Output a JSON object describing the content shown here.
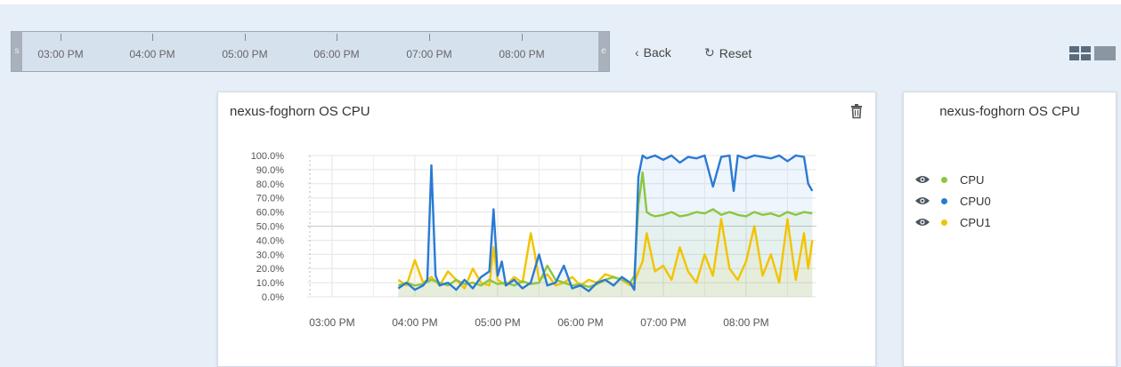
{
  "timeline": {
    "handle_left": "s",
    "handle_right": "e",
    "labels": [
      "03:00 PM",
      "04:00 PM",
      "05:00 PM",
      "06:00 PM",
      "07:00 PM",
      "08:00 PM"
    ]
  },
  "nav": {
    "back_label": "Back",
    "reset_label": "Reset"
  },
  "chart_panel": {
    "title": "nexus-foghorn OS CPU"
  },
  "legend_panel": {
    "title": "nexus-foghorn OS CPU",
    "items": [
      {
        "label": "CPU",
        "color": "#8cc63f"
      },
      {
        "label": "CPU0",
        "color": "#2a7ad3"
      },
      {
        "label": "CPU1",
        "color": "#f2c300"
      }
    ]
  },
  "chart_data": {
    "type": "line",
    "title": "nexus-foghorn OS CPU",
    "xlabel": "",
    "ylabel": "",
    "x_unit": "hours (PM, 24h clock)",
    "xlim": [
      14.7,
      20.85
    ],
    "ylim": [
      0,
      100
    ],
    "yticks": [
      "0.0%",
      "10.0%",
      "20.0%",
      "30.0%",
      "40.0%",
      "50.0%",
      "60.0%",
      "70.0%",
      "80.0%",
      "90.0%",
      "100.0%"
    ],
    "xticks": [
      {
        "x": 15,
        "label": "03:00 PM"
      },
      {
        "x": 16,
        "label": "04:00 PM"
      },
      {
        "x": 17,
        "label": "05:00 PM"
      },
      {
        "x": 18,
        "label": "06:00 PM"
      },
      {
        "x": 19,
        "label": "07:00 PM"
      },
      {
        "x": 20,
        "label": "08:00 PM"
      }
    ],
    "grid": true,
    "series": [
      {
        "name": "CPU",
        "color": "#8cc63f",
        "x": [
          15.8,
          15.9,
          16.0,
          16.1,
          16.2,
          16.3,
          16.4,
          16.5,
          16.6,
          16.7,
          16.8,
          16.9,
          17.0,
          17.1,
          17.2,
          17.3,
          17.4,
          17.5,
          17.6,
          17.7,
          17.8,
          17.9,
          18.0,
          18.1,
          18.2,
          18.3,
          18.4,
          18.5,
          18.6,
          18.65,
          18.7,
          18.75,
          18.8,
          18.85,
          18.9,
          19.0,
          19.1,
          19.2,
          19.3,
          19.4,
          19.5,
          19.6,
          19.7,
          19.8,
          19.9,
          20.0,
          20.1,
          20.2,
          20.3,
          20.4,
          20.5,
          20.6,
          20.7,
          20.8
        ],
        "y": [
          8,
          10,
          8,
          9,
          12,
          10,
          8,
          12,
          9,
          10,
          8,
          12,
          9,
          10,
          8,
          11,
          9,
          10,
          22,
          12,
          10,
          8,
          9,
          7,
          9,
          12,
          14,
          12,
          10,
          15,
          65,
          88,
          60,
          58,
          57,
          58,
          60,
          57,
          58,
          60,
          59,
          62,
          58,
          60,
          58,
          57,
          60,
          58,
          59,
          57,
          60,
          58,
          60,
          59
        ]
      },
      {
        "name": "CPU0",
        "color": "#2a7ad3",
        "x": [
          15.8,
          15.9,
          16.0,
          16.1,
          16.15,
          16.2,
          16.25,
          16.3,
          16.4,
          16.5,
          16.6,
          16.7,
          16.8,
          16.9,
          16.95,
          17.0,
          17.05,
          17.1,
          17.2,
          17.3,
          17.4,
          17.5,
          17.6,
          17.7,
          17.8,
          17.9,
          18.0,
          18.1,
          18.2,
          18.3,
          18.4,
          18.5,
          18.6,
          18.65,
          18.7,
          18.75,
          18.8,
          18.9,
          19.0,
          19.1,
          19.2,
          19.3,
          19.4,
          19.5,
          19.6,
          19.7,
          19.8,
          19.85,
          19.9,
          20.0,
          20.1,
          20.2,
          20.3,
          20.4,
          20.5,
          20.6,
          20.7,
          20.75,
          20.8
        ],
        "y": [
          6,
          10,
          5,
          8,
          12,
          93,
          15,
          8,
          10,
          5,
          12,
          6,
          14,
          18,
          62,
          15,
          25,
          8,
          12,
          6,
          10,
          30,
          8,
          10,
          22,
          6,
          8,
          4,
          10,
          12,
          8,
          14,
          10,
          5,
          85,
          100,
          98,
          100,
          97,
          100,
          95,
          99,
          98,
          100,
          78,
          99,
          100,
          75,
          100,
          98,
          100,
          99,
          98,
          100,
          96,
          100,
          99,
          80,
          75
        ]
      },
      {
        "name": "CPU1",
        "color": "#f2c300",
        "x": [
          15.8,
          15.9,
          16.0,
          16.1,
          16.2,
          16.3,
          16.4,
          16.5,
          16.6,
          16.7,
          16.8,
          16.9,
          16.95,
          17.0,
          17.1,
          17.2,
          17.3,
          17.4,
          17.45,
          17.5,
          17.6,
          17.7,
          17.8,
          17.9,
          18.0,
          18.1,
          18.2,
          18.3,
          18.4,
          18.5,
          18.6,
          18.65,
          18.7,
          18.75,
          18.8,
          18.9,
          19.0,
          19.1,
          19.2,
          19.3,
          19.4,
          19.5,
          19.6,
          19.7,
          19.8,
          19.9,
          20.0,
          20.1,
          20.2,
          20.3,
          20.4,
          20.5,
          20.6,
          20.7,
          20.75,
          20.8
        ],
        "y": [
          12,
          8,
          26,
          10,
          14,
          8,
          18,
          12,
          6,
          20,
          10,
          8,
          35,
          12,
          8,
          14,
          10,
          45,
          30,
          12,
          16,
          8,
          10,
          14,
          8,
          12,
          10,
          16,
          14,
          12,
          8,
          10,
          18,
          25,
          45,
          18,
          22,
          12,
          35,
          18,
          10,
          30,
          15,
          55,
          20,
          12,
          25,
          50,
          15,
          30,
          10,
          55,
          12,
          45,
          20,
          40
        ]
      }
    ]
  }
}
